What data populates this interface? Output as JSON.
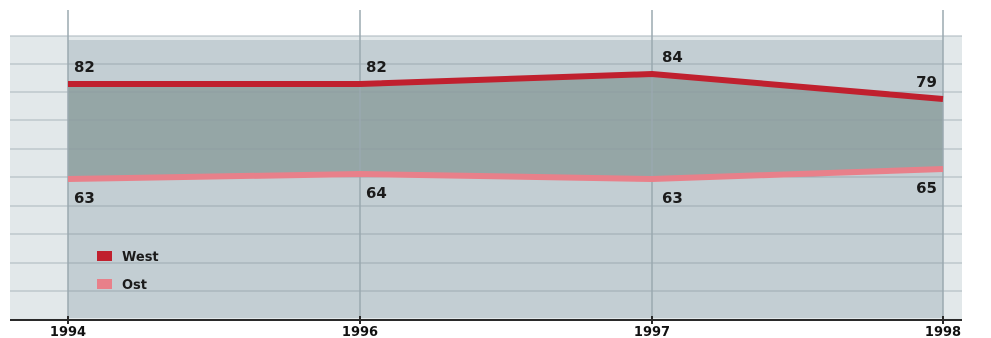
{
  "chart_data": {
    "type": "area",
    "x": [
      1994,
      1996,
      1997,
      1998
    ],
    "x_tick_labels": [
      "1994",
      "1996",
      "1997",
      "1998"
    ],
    "series": [
      {
        "name": "West",
        "values": [
          82,
          82,
          84,
          79
        ],
        "color": "#c0202e"
      },
      {
        "name": "Ost",
        "values": [
          63,
          64,
          63,
          65
        ],
        "color": "#e8808a"
      }
    ],
    "fill_between_color": "#95a6a6",
    "plot_background": "#c3ced3",
    "grid_color": "#8c9aa2",
    "legend_position": "bottom-left",
    "grid": true
  }
}
